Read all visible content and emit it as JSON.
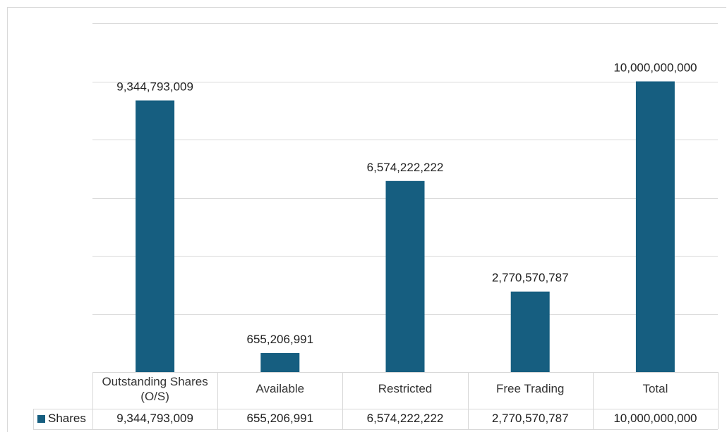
{
  "chart_data": {
    "type": "bar",
    "categories": [
      "Outstanding Shares (O/S)",
      "Available",
      "Restricted",
      "Free Trading",
      "Total"
    ],
    "series": [
      {
        "name": "Shares",
        "values": [
          9344793009,
          655206991,
          6574222222,
          2770570787,
          10000000000
        ],
        "labels": [
          "9,344,793,009",
          "655,206,991",
          "6,574,222,222",
          "2,770,570,787",
          "10,000,000,000"
        ],
        "color": "#165e80"
      }
    ],
    "ylim": [
      0,
      12000000000
    ],
    "grid": true,
    "legend": "data-table"
  }
}
